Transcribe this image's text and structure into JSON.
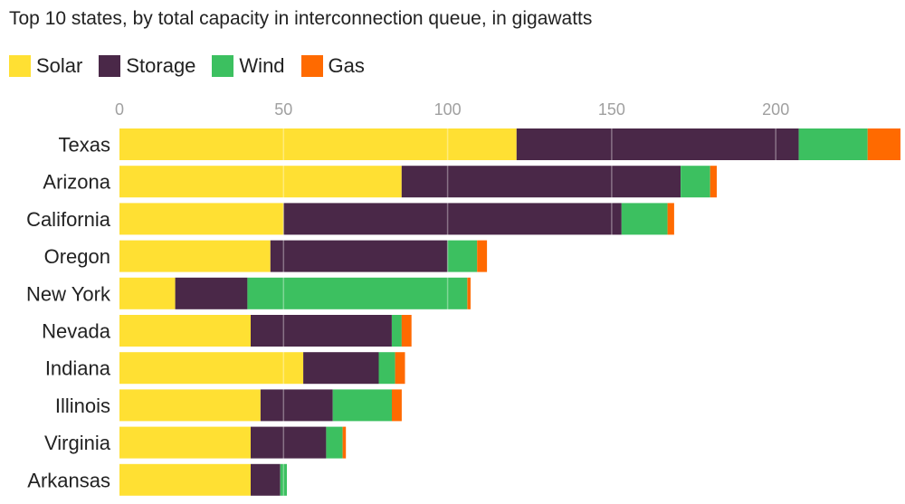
{
  "chart_data": {
    "type": "bar",
    "orientation": "horizontal",
    "stacked": true,
    "title": "Top 10 states, by total capacity in interconnection queue, in gigawatts",
    "categories": [
      "Texas",
      "Arizona",
      "California",
      "Oregon",
      "New York",
      "Nevada",
      "Indiana",
      "Illinois",
      "Virginia",
      "Arkansas"
    ],
    "series": [
      {
        "name": "Solar",
        "color": "#FFE033",
        "values": [
          121,
          86,
          50,
          46,
          17,
          40,
          56,
          43,
          40,
          40
        ]
      },
      {
        "name": "Storage",
        "color": "#4A2848",
        "values": [
          86,
          85,
          103,
          54,
          22,
          43,
          23,
          22,
          23,
          9
        ]
      },
      {
        "name": "Wind",
        "color": "#3CC060",
        "values": [
          21,
          9,
          14,
          9,
          67,
          3,
          5,
          18,
          5,
          2
        ]
      },
      {
        "name": "Gas",
        "color": "#FF6A00",
        "values": [
          10,
          2,
          2,
          3,
          1,
          3,
          3,
          3,
          1,
          0
        ]
      }
    ],
    "xlim": [
      0,
      238
    ],
    "xticks": [
      0,
      50,
      100,
      150,
      200
    ],
    "grid": true,
    "legend_position": "top-left",
    "xlabel": "",
    "ylabel": ""
  }
}
